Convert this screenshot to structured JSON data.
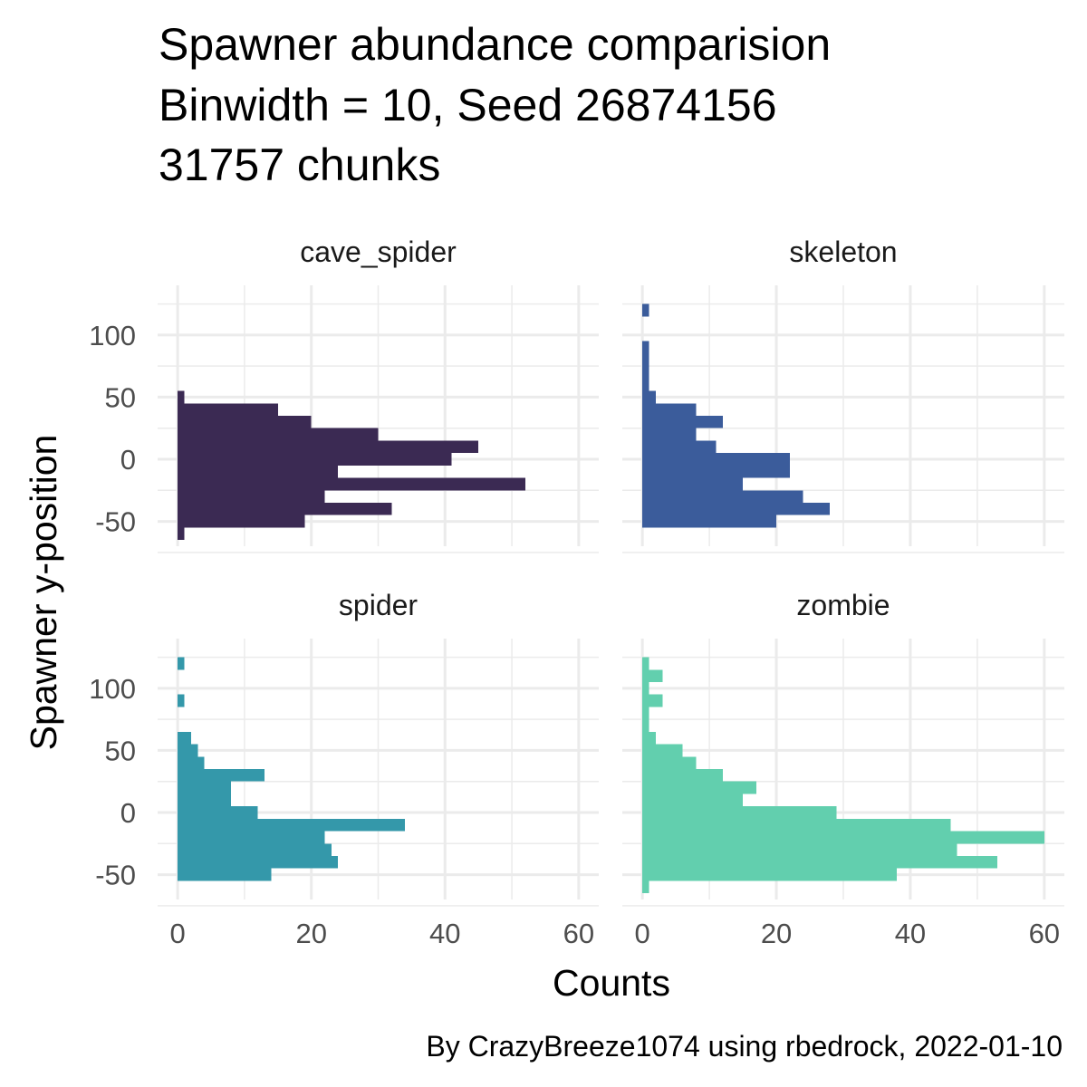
{
  "chart_data": {
    "type": "histogram",
    "orientation": "horizontal",
    "title_lines": [
      "Spawner abundance comparision",
      "Binwidth = 10, Seed 26874156",
      "31757 chunks"
    ],
    "xlabel": "Counts",
    "ylabel": "Spawner y-position",
    "caption": "By CrazyBreeze1074 using rbedrock, 2022-01-10",
    "binwidth": 10,
    "xlim": [
      -3,
      63
    ],
    "ylim": [
      -70,
      140
    ],
    "x_ticks": [
      0,
      20,
      40,
      60
    ],
    "x_tick_labels": [
      "0",
      "20",
      "40",
      "60"
    ],
    "y_ticks": [
      -50,
      0,
      50,
      100
    ],
    "y_tick_labels": [
      "-50",
      "0",
      "50",
      "100"
    ],
    "panels": [
      {
        "name": "cave_spider",
        "color": "#3b2a53",
        "bins": [
          {
            "y": -60,
            "count": 1
          },
          {
            "y": -50,
            "count": 19
          },
          {
            "y": -40,
            "count": 32
          },
          {
            "y": -30,
            "count": 22
          },
          {
            "y": -20,
            "count": 52
          },
          {
            "y": -10,
            "count": 24
          },
          {
            "y": 0,
            "count": 41
          },
          {
            "y": 10,
            "count": 45
          },
          {
            "y": 20,
            "count": 30
          },
          {
            "y": 30,
            "count": 20
          },
          {
            "y": 40,
            "count": 15
          },
          {
            "y": 50,
            "count": 1
          }
        ]
      },
      {
        "name": "skeleton",
        "color": "#3b5c9b",
        "bins": [
          {
            "y": -50,
            "count": 20
          },
          {
            "y": -40,
            "count": 28
          },
          {
            "y": -30,
            "count": 24
          },
          {
            "y": -20,
            "count": 15
          },
          {
            "y": -10,
            "count": 22
          },
          {
            "y": 0,
            "count": 22
          },
          {
            "y": 10,
            "count": 11
          },
          {
            "y": 20,
            "count": 8
          },
          {
            "y": 30,
            "count": 12
          },
          {
            "y": 40,
            "count": 8
          },
          {
            "y": 50,
            "count": 2
          },
          {
            "y": 60,
            "count": 1
          },
          {
            "y": 70,
            "count": 1
          },
          {
            "y": 80,
            "count": 1
          },
          {
            "y": 90,
            "count": 1
          },
          {
            "y": 120,
            "count": 1
          }
        ]
      },
      {
        "name": "spider",
        "color": "#3498aa",
        "bins": [
          {
            "y": -50,
            "count": 14
          },
          {
            "y": -40,
            "count": 24
          },
          {
            "y": -30,
            "count": 23
          },
          {
            "y": -20,
            "count": 22
          },
          {
            "y": -10,
            "count": 34
          },
          {
            "y": 0,
            "count": 12
          },
          {
            "y": 10,
            "count": 8
          },
          {
            "y": 20,
            "count": 8
          },
          {
            "y": 30,
            "count": 13
          },
          {
            "y": 40,
            "count": 4
          },
          {
            "y": 50,
            "count": 3
          },
          {
            "y": 60,
            "count": 2
          },
          {
            "y": 90,
            "count": 1
          },
          {
            "y": 120,
            "count": 1
          }
        ]
      },
      {
        "name": "zombie",
        "color": "#62cfae",
        "bins": [
          {
            "y": -60,
            "count": 1
          },
          {
            "y": -50,
            "count": 38
          },
          {
            "y": -40,
            "count": 53
          },
          {
            "y": -30,
            "count": 47
          },
          {
            "y": -20,
            "count": 60
          },
          {
            "y": -10,
            "count": 46
          },
          {
            "y": 0,
            "count": 29
          },
          {
            "y": 10,
            "count": 15
          },
          {
            "y": 20,
            "count": 17
          },
          {
            "y": 30,
            "count": 12
          },
          {
            "y": 40,
            "count": 8
          },
          {
            "y": 50,
            "count": 6
          },
          {
            "y": 60,
            "count": 2
          },
          {
            "y": 70,
            "count": 1
          },
          {
            "y": 80,
            "count": 1
          },
          {
            "y": 90,
            "count": 3
          },
          {
            "y": 100,
            "count": 1
          },
          {
            "y": 110,
            "count": 3
          },
          {
            "y": 120,
            "count": 1
          }
        ]
      }
    ]
  }
}
